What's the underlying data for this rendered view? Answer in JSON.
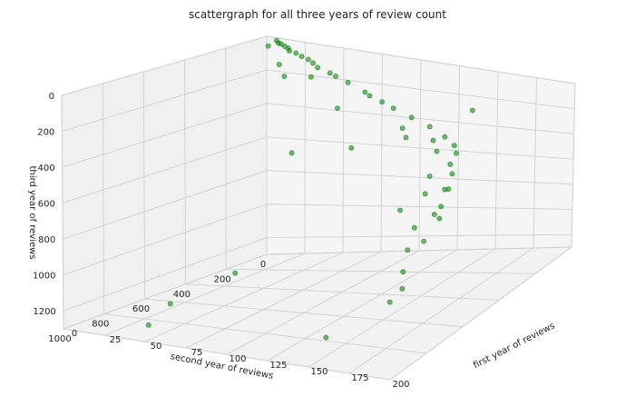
{
  "chart_data": {
    "type": "scatter",
    "projection": "3d",
    "title": "scattergraph for all three years of review count",
    "xlabel": "first year of reviews",
    "ylabel": "second year of reviews",
    "zlabel": "third year of reviews",
    "xlim": [
      0,
      200
    ],
    "ylim": [
      0,
      1000
    ],
    "zlim": [
      1300,
      0
    ],
    "xticks": [
      "0",
      "25",
      "50",
      "75",
      "100",
      "125",
      "150",
      "175",
      "200"
    ],
    "yticks": [
      "0",
      "200",
      "400",
      "600",
      "800",
      "1000"
    ],
    "zticks": [
      "0",
      "200",
      "400",
      "600",
      "800",
      "1000",
      "1200"
    ],
    "grid": true,
    "legend": "none",
    "marker_color": "#008000",
    "series": [
      {
        "values": [
          [
            12,
            20,
            22
          ],
          [
            8,
            12,
            10
          ],
          [
            18,
            30,
            35
          ],
          [
            25,
            45,
            50
          ],
          [
            30,
            55,
            60
          ],
          [
            40,
            75,
            80
          ],
          [
            55,
            105,
            110
          ],
          [
            70,
            130,
            140
          ],
          [
            85,
            160,
            170
          ],
          [
            100,
            190,
            200
          ],
          [
            15,
            25,
            30
          ],
          [
            10,
            18,
            20
          ],
          [
            20,
            40,
            45
          ],
          [
            35,
            60,
            70
          ],
          [
            45,
            90,
            95
          ],
          [
            60,
            115,
            120
          ],
          [
            90,
            175,
            180
          ],
          [
            110,
            210,
            220
          ],
          [
            125,
            235,
            250
          ],
          [
            140,
            260,
            280
          ],
          [
            155,
            300,
            310
          ],
          [
            165,
            330,
            340
          ],
          [
            170,
            360,
            370
          ],
          [
            150,
            320,
            330
          ],
          [
            135,
            340,
            320
          ],
          [
            160,
            380,
            360
          ],
          [
            175,
            430,
            400
          ],
          [
            180,
            460,
            440
          ],
          [
            185,
            520,
            500
          ],
          [
            190,
            600,
            560
          ],
          [
            195,
            650,
            600
          ],
          [
            185,
            700,
            640
          ],
          [
            190,
            780,
            720
          ],
          [
            195,
            850,
            800
          ],
          [
            200,
            900,
            860
          ],
          [
            175,
            560,
            520
          ],
          [
            168,
            480,
            460
          ],
          [
            188,
            620,
            600
          ],
          [
            193,
            720,
            700
          ],
          [
            199,
            960,
            900
          ],
          [
            110,
            420,
            380
          ],
          [
            170,
            650,
            580
          ],
          [
            180,
            500,
            520
          ],
          [
            125,
            280,
            300
          ],
          [
            95,
            600,
            350
          ],
          [
            150,
            900,
            1200
          ],
          [
            40,
            900,
            1270
          ],
          [
            60,
            950,
            1100
          ],
          [
            85,
            820,
            960
          ],
          [
            160,
            200,
            170
          ],
          [
            30,
            140,
            150
          ],
          [
            50,
            160,
            120
          ],
          [
            75,
            220,
            260
          ],
          [
            20,
            90,
            110
          ],
          [
            5,
            30,
            40
          ]
        ]
      }
    ]
  }
}
